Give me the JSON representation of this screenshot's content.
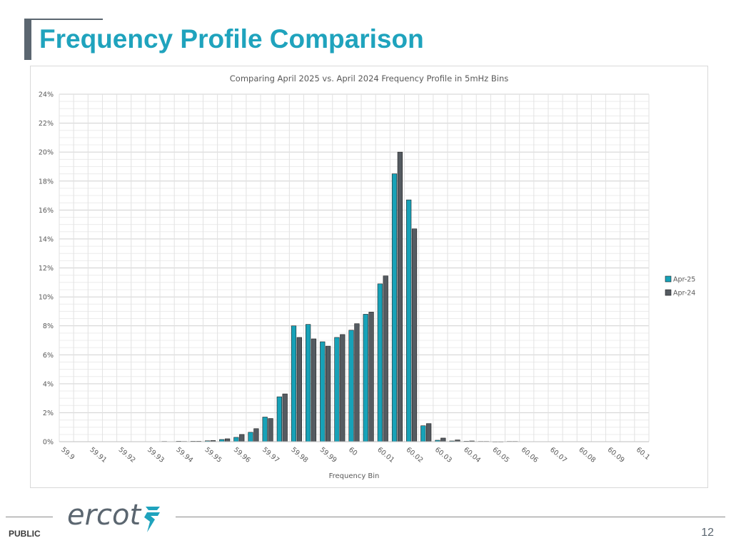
{
  "slide": {
    "title": "Frequency Profile Comparison",
    "footer_label": "PUBLIC",
    "page_number": "12",
    "logo_text": "ercot"
  },
  "colors": {
    "title": "#1fa3bd",
    "accent_bar": "#5b6670",
    "apr25": "#17a2b8",
    "apr24": "#555b61"
  },
  "chart_data": {
    "type": "bar",
    "title": "Comparing April 2025 vs. April 2024 Frequency Profile in 5mHz Bins",
    "xlabel": "Frequency Bin",
    "ylabel": "",
    "ylim": [
      0,
      24
    ],
    "y_ticks": [
      "0%",
      "2%",
      "4%",
      "6%",
      "8%",
      "10%",
      "12%",
      "14%",
      "16%",
      "18%",
      "20%",
      "22%",
      "24%"
    ],
    "x_tick_labels": [
      "59.9",
      "59.91",
      "59.92",
      "59.93",
      "59.94",
      "59.95",
      "59.96",
      "59.97",
      "59.98",
      "59.99",
      "60",
      "60.01",
      "60.02",
      "60.03",
      "60.04",
      "60.05",
      "60.06",
      "60.07",
      "60.08",
      "60.09",
      "60.1"
    ],
    "categories": [
      "59.9",
      "59.905",
      "59.91",
      "59.915",
      "59.92",
      "59.925",
      "59.93",
      "59.935",
      "59.94",
      "59.945",
      "59.95",
      "59.955",
      "59.96",
      "59.965",
      "59.97",
      "59.975",
      "59.98",
      "59.985",
      "59.99",
      "59.995",
      "60",
      "60.005",
      "60.01",
      "60.015",
      "60.02",
      "60.025",
      "60.03",
      "60.035",
      "60.04",
      "60.045",
      "60.05",
      "60.055",
      "60.06",
      "60.065",
      "60.07",
      "60.075",
      "60.08",
      "60.085",
      "60.09",
      "60.095",
      "60.1"
    ],
    "series": [
      {
        "name": "Apr-25",
        "values": [
          0,
          0,
          0,
          0,
          0,
          0,
          0,
          0.02,
          0.03,
          0.03,
          0.06,
          0.15,
          0.3,
          0.65,
          1.7,
          3.1,
          8.0,
          8.1,
          6.9,
          7.2,
          7.7,
          8.8,
          10.9,
          18.5,
          16.7,
          1.1,
          0.1,
          0.05,
          0.03,
          0.02,
          0.01,
          0.02,
          0,
          0,
          0,
          0,
          0,
          0,
          0,
          0,
          0
        ]
      },
      {
        "name": "Apr-24",
        "values": [
          0,
          0,
          0,
          0,
          0,
          0,
          0,
          0,
          0.02,
          0.03,
          0.08,
          0.2,
          0.5,
          0.9,
          1.6,
          3.3,
          7.2,
          7.1,
          6.6,
          7.4,
          8.15,
          8.95,
          11.45,
          20.0,
          14.7,
          1.25,
          0.25,
          0.12,
          0.05,
          0.02,
          0.01,
          0.02,
          0,
          0,
          0,
          0,
          0,
          0,
          0,
          0,
          0
        ]
      }
    ],
    "legend_position": "right",
    "grid": true
  }
}
